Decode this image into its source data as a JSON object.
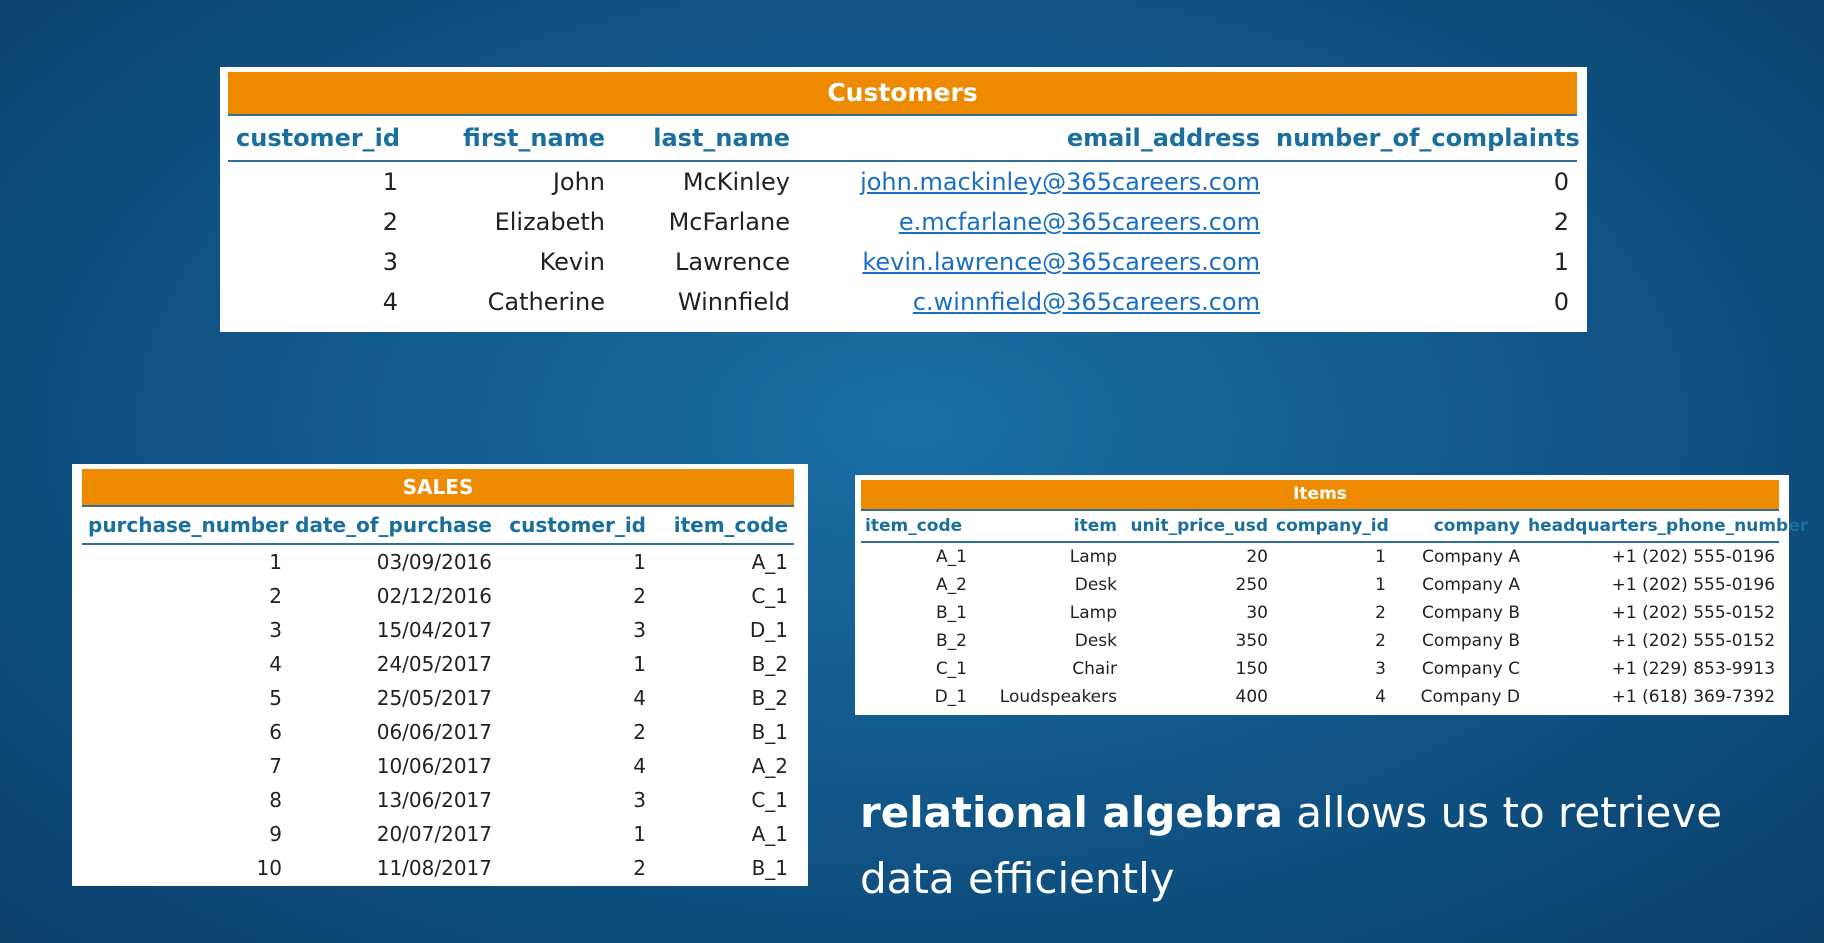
{
  "customers": {
    "title": "Customers",
    "columns": [
      "customer_id",
      "first_name",
      "last_name",
      "email_address",
      "number_of_complaints"
    ],
    "rows": [
      [
        "1",
        "John",
        "McKinley",
        "john.mackinley@365careers.com",
        "0"
      ],
      [
        "2",
        "Elizabeth",
        "McFarlane",
        "e.mcfarlane@365careers.com",
        "2"
      ],
      [
        "3",
        "Kevin",
        "Lawrence",
        "kevin.lawrence@365careers.com",
        "1"
      ],
      [
        "4",
        "Catherine",
        "Winnfield",
        "c.winnfield@365careers.com",
        "0"
      ]
    ]
  },
  "sales": {
    "title": "SALES",
    "columns": [
      "purchase_number",
      "date_of_purchase",
      "customer_id",
      "item_code"
    ],
    "rows": [
      [
        "1",
        "03/09/2016",
        "1",
        "A_1"
      ],
      [
        "2",
        "02/12/2016",
        "2",
        "C_1"
      ],
      [
        "3",
        "15/04/2017",
        "3",
        "D_1"
      ],
      [
        "4",
        "24/05/2017",
        "1",
        "B_2"
      ],
      [
        "5",
        "25/05/2017",
        "4",
        "B_2"
      ],
      [
        "6",
        "06/06/2017",
        "2",
        "B_1"
      ],
      [
        "7",
        "10/06/2017",
        "4",
        "A_2"
      ],
      [
        "8",
        "13/06/2017",
        "3",
        "C_1"
      ],
      [
        "9",
        "20/07/2017",
        "1",
        "A_1"
      ],
      [
        "10",
        "11/08/2017",
        "2",
        "B_1"
      ]
    ]
  },
  "items": {
    "title": "Items",
    "columns": [
      "item_code",
      "item",
      "unit_price_usd",
      "company_id",
      "company",
      "headquarters_phone_number"
    ],
    "rows": [
      [
        "A_1",
        "Lamp",
        "20",
        "1",
        "Company A",
        "+1 (202) 555-0196"
      ],
      [
        "A_2",
        "Desk",
        "250",
        "1",
        "Company A",
        "+1 (202) 555-0196"
      ],
      [
        "B_1",
        "Lamp",
        "30",
        "2",
        "Company B",
        "+1 (202) 555-0152"
      ],
      [
        "B_2",
        "Desk",
        "350",
        "2",
        "Company B",
        "+1 (202) 555-0152"
      ],
      [
        "C_1",
        "Chair",
        "150",
        "3",
        "Company C",
        "+1 (229) 853-9913"
      ],
      [
        "D_1",
        "Loudspeakers",
        "400",
        "4",
        "Company D",
        "+1 (618) 369-7392"
      ]
    ]
  },
  "caption": {
    "bold": "relational algebra",
    "rest": " allows us to retrieve data efficiently"
  }
}
